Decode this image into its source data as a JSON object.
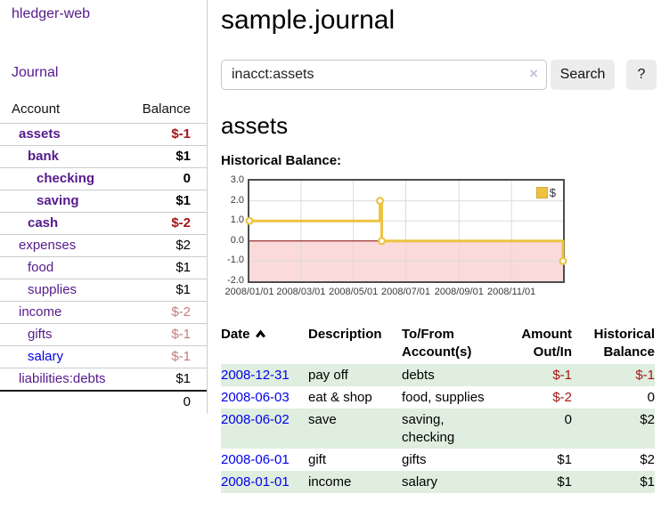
{
  "app": {
    "title": "hledger-web"
  },
  "sidebar": {
    "nav_journal": "Journal",
    "accounts_table": {
      "headers": {
        "account": "Account",
        "balance": "Balance"
      },
      "rows": [
        {
          "name": "assets",
          "balance": "$-1",
          "depth": 1,
          "bold": true,
          "balance_tone": "neg",
          "unvisited": false
        },
        {
          "name": "bank",
          "balance": "$1",
          "depth": 2,
          "bold": true,
          "balance_tone": "",
          "unvisited": false
        },
        {
          "name": "checking",
          "balance": "0",
          "depth": 3,
          "bold": true,
          "balance_tone": "",
          "unvisited": false
        },
        {
          "name": "saving",
          "balance": "$1",
          "depth": 3,
          "bold": true,
          "balance_tone": "",
          "unvisited": false
        },
        {
          "name": "cash",
          "balance": "$-2",
          "depth": 2,
          "bold": true,
          "balance_tone": "neg",
          "unvisited": false
        },
        {
          "name": "expenses",
          "balance": "$2",
          "depth": 1,
          "bold": false,
          "balance_tone": "",
          "unvisited": false
        },
        {
          "name": "food",
          "balance": "$1",
          "depth": 2,
          "bold": false,
          "balance_tone": "",
          "unvisited": false
        },
        {
          "name": "supplies",
          "balance": "$1",
          "depth": 2,
          "bold": false,
          "balance_tone": "",
          "unvisited": false
        },
        {
          "name": "income",
          "balance": "$-2",
          "depth": 1,
          "bold": false,
          "balance_tone": "negdim",
          "unvisited": false
        },
        {
          "name": "gifts",
          "balance": "$-1",
          "depth": 2,
          "bold": false,
          "balance_tone": "negdim",
          "unvisited": false
        },
        {
          "name": "salary",
          "balance": "$-1",
          "depth": 2,
          "bold": false,
          "balance_tone": "negdim",
          "unvisited": true
        },
        {
          "name": "liabilities:debts",
          "balance": "$1",
          "depth": 1,
          "bold": false,
          "balance_tone": "",
          "unvisited": false
        }
      ],
      "total": "0"
    }
  },
  "header": {
    "title": "sample.journal"
  },
  "search": {
    "value": "inacct:assets",
    "clear_glyph": "×",
    "button_label": "Search",
    "help_label": "?"
  },
  "account_page": {
    "heading": "assets",
    "chart_label": "Historical Balance:"
  },
  "chart_data": {
    "type": "line",
    "title": "Historical Balance:",
    "series": [
      {
        "name": "$",
        "color": "#EDC240",
        "step": true,
        "points": [
          [
            "2008-01-01",
            1
          ],
          [
            "2008-06-01",
            2
          ],
          [
            "2008-06-03",
            0
          ],
          [
            "2008-12-31",
            -1
          ]
        ]
      }
    ],
    "x_range": [
      "2008-01-01",
      "2008-12-31"
    ],
    "y_range": [
      -2,
      3
    ],
    "x_ticks": [
      "2008/01/01",
      "2008/03/01",
      "2008/05/01",
      "2008/07/01",
      "2008/09/01",
      "2008/11/01"
    ],
    "y_ticks": [
      "3.0",
      "2.0",
      "1.0",
      "0.0",
      "-1.0",
      "-2.0"
    ],
    "grid": true,
    "negative_region_color": "#fbdada",
    "zero_line_color": "#800000",
    "gridline_color": "#dcdcdc",
    "legend": {
      "label": "$",
      "position": "top-right",
      "swatch_color": "#EDC240",
      "swatch_border": "#cfa93a"
    }
  },
  "register": {
    "columns": {
      "date": "Date",
      "description": "Description",
      "accounts": "To/From Account(s)",
      "amount": "Amount Out/In",
      "balance": "Historical Balance"
    },
    "sort_icon": "sort-ascending",
    "rows": [
      {
        "date": "2008-12-31",
        "description": "pay off",
        "accounts": "debts",
        "amount": "$-1",
        "amount_negative": true,
        "balance": "$-1",
        "balance_negative": true
      },
      {
        "date": "2008-06-03",
        "description": "eat & shop",
        "accounts": "food, supplies",
        "amount": "$-2",
        "amount_negative": true,
        "balance": "0",
        "balance_negative": false
      },
      {
        "date": "2008-06-02",
        "description": "save",
        "accounts": "saving, checking",
        "amount": "0",
        "amount_negative": false,
        "balance": "$2",
        "balance_negative": false
      },
      {
        "date": "2008-06-01",
        "description": "gift",
        "accounts": "gifts",
        "amount": "$1",
        "amount_negative": false,
        "balance": "$2",
        "balance_negative": false
      },
      {
        "date": "2008-01-01",
        "description": "income",
        "accounts": "salary",
        "amount": "$1",
        "amount_negative": false,
        "balance": "$1",
        "balance_negative": false
      }
    ]
  }
}
